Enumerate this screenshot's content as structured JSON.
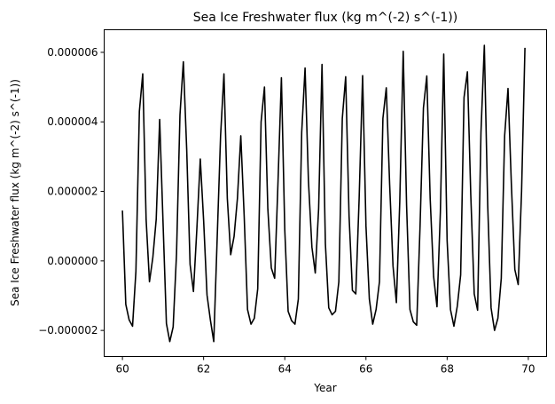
{
  "chart_data": {
    "type": "line",
    "title": "Sea Ice Freshwater flux (kg m^(-2) s^(-1))",
    "xlabel": "Year",
    "ylabel": "Sea Ice Freshwater flux (kg m^(-2) s^(-1))",
    "xlim": [
      59.55,
      70.45
    ],
    "ylim": [
      -2.75e-06,
      6.65e-06
    ],
    "grid": false,
    "x_ticks": [
      {
        "value": 60,
        "label": "60"
      },
      {
        "value": 62,
        "label": "62"
      },
      {
        "value": 64,
        "label": "64"
      },
      {
        "value": 66,
        "label": "66"
      },
      {
        "value": 68,
        "label": "68"
      },
      {
        "value": 70,
        "label": "70"
      }
    ],
    "y_ticks": [
      {
        "value": -2e-06,
        "label": "−0.000002"
      },
      {
        "value": 0,
        "label": "0.000000"
      },
      {
        "value": 2e-06,
        "label": "0.000002"
      },
      {
        "value": 4e-06,
        "label": "0.000004"
      },
      {
        "value": 6e-06,
        "label": "0.000006"
      }
    ],
    "series": [
      {
        "color": "#000000",
        "x": [
          60.0,
          60.083,
          60.167,
          60.25,
          60.333,
          60.417,
          60.5,
          60.583,
          60.667,
          60.75,
          60.833,
          60.917,
          61.0,
          61.083,
          61.167,
          61.25,
          61.333,
          61.417,
          61.5,
          61.583,
          61.667,
          61.75,
          61.833,
          61.917,
          62.0,
          62.083,
          62.167,
          62.25,
          62.333,
          62.417,
          62.5,
          62.583,
          62.667,
          62.75,
          62.833,
          62.917,
          63.0,
          63.083,
          63.167,
          63.25,
          63.333,
          63.417,
          63.5,
          63.583,
          63.667,
          63.75,
          63.833,
          63.917,
          64.0,
          64.083,
          64.167,
          64.25,
          64.333,
          64.417,
          64.5,
          64.583,
          64.667,
          64.75,
          64.833,
          64.917,
          65.0,
          65.083,
          65.167,
          65.25,
          65.333,
          65.417,
          65.5,
          65.583,
          65.667,
          65.75,
          65.833,
          65.917,
          66.0,
          66.083,
          66.167,
          66.25,
          66.333,
          66.417,
          66.5,
          66.583,
          66.667,
          66.75,
          66.833,
          66.917,
          67.0,
          67.083,
          67.167,
          67.25,
          67.333,
          67.417,
          67.5,
          67.583,
          67.667,
          67.75,
          67.833,
          67.917,
          68.0,
          68.083,
          68.167,
          68.25,
          68.333,
          68.417,
          68.5,
          68.583,
          68.667,
          68.75,
          68.833,
          68.917,
          69.0,
          69.083,
          69.167,
          69.25,
          69.333,
          69.417,
          69.5,
          69.583,
          69.667,
          69.75,
          69.833,
          69.917
        ],
        "y": [
          1.45e-06,
          -1.25e-06,
          -1.7e-06,
          -1.88e-06,
          -3e-07,
          4.3e-06,
          5.38e-06,
          1.2e-06,
          -6e-07,
          1e-07,
          1.2e-06,
          4.07e-06,
          1.1e-06,
          -1.8e-06,
          -2.32e-06,
          -1.9e-06,
          2e-07,
          4.2e-06,
          5.73e-06,
          3.2e-06,
          -1e-07,
          -8.8e-07,
          9e-07,
          2.93e-06,
          1.15e-06,
          -9.8e-07,
          -1.7e-06,
          -2.32e-06,
          6e-07,
          3.6e-06,
          5.38e-06,
          1.8e-06,
          1.8e-07,
          7e-07,
          1.8e-06,
          3.6e-06,
          1.3e-06,
          -1.4e-06,
          -1.82e-06,
          -1.65e-06,
          -8e-07,
          4e-06,
          5e-06,
          1.5e-06,
          -2e-07,
          -5e-07,
          2.3e-06,
          5.27e-06,
          9e-07,
          -1.45e-06,
          -1.72e-06,
          -1.82e-06,
          -1.1e-06,
          3.7e-06,
          5.55e-06,
          2.3e-06,
          4e-07,
          -3.5e-07,
          1.5e-06,
          5.65e-06,
          5e-07,
          -1.35e-06,
          -1.55e-06,
          -1.45e-06,
          -6e-07,
          4.1e-06,
          5.3e-06,
          1.3e-06,
          -8.5e-07,
          -9.5e-07,
          1.8e-06,
          5.33e-06,
          1e-06,
          -1.1e-06,
          -1.82e-06,
          -1.4e-06,
          -6e-07,
          4.1e-06,
          4.98e-06,
          2.2e-06,
          -1.5e-07,
          -1.2e-06,
          1.7e-06,
          6.03e-06,
          1.6e-06,
          -1.4e-06,
          -1.75e-06,
          -1.85e-06,
          1e-06,
          4.4e-06,
          5.32e-06,
          1.8e-06,
          -4.5e-07,
          -1.32e-06,
          1.4e-06,
          5.95e-06,
          6e-07,
          -1.4e-06,
          -1.88e-06,
          -1.3e-06,
          -4e-07,
          4.7e-06,
          5.44e-06,
          1.9e-06,
          -9.5e-07,
          -1.42e-06,
          3.7e-06,
          6.2e-06,
          1.6e-06,
          -1.35e-06,
          -2e-06,
          -1.65e-06,
          -5e-07,
          3.6e-06,
          4.96e-06,
          2.2e-06,
          -2.5e-07,
          -6.8e-07,
          2e-06,
          6.13e-06
        ]
      }
    ]
  }
}
